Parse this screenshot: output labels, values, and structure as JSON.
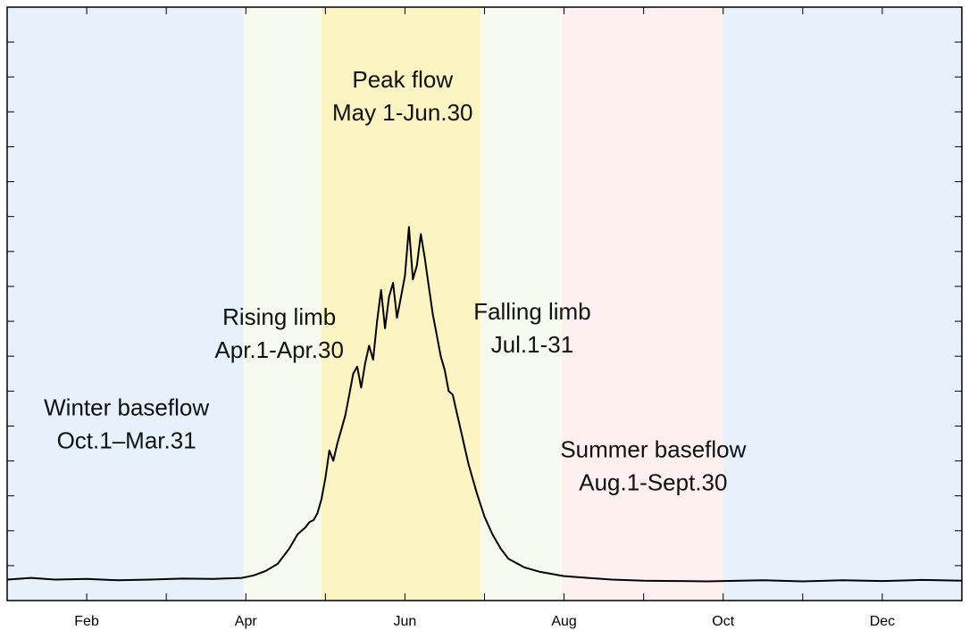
{
  "chart_data": {
    "type": "line",
    "title": "",
    "xlabel": "",
    "ylabel": "",
    "x_unit": "month of year",
    "xlim": [
      1.0,
      13.0
    ],
    "ylim": [
      0,
      17
    ],
    "grid": false,
    "x_ticks": [
      {
        "value": 1.0,
        "label": ""
      },
      {
        "value": 2.0,
        "label": "Feb"
      },
      {
        "value": 3.0,
        "label": ""
      },
      {
        "value": 4.0,
        "label": "Apr"
      },
      {
        "value": 5.0,
        "label": ""
      },
      {
        "value": 6.0,
        "label": "Jun"
      },
      {
        "value": 7.0,
        "label": ""
      },
      {
        "value": 8.0,
        "label": "Aug"
      },
      {
        "value": 9.0,
        "label": ""
      },
      {
        "value": 10.0,
        "label": "Oct"
      },
      {
        "value": 11.0,
        "label": ""
      },
      {
        "value": 12.0,
        "label": "Dec"
      },
      {
        "value": 13.0,
        "label": ""
      }
    ],
    "y_ticks": [
      0,
      1,
      2,
      3,
      4,
      5,
      6,
      7,
      8,
      9,
      10,
      11,
      12,
      13,
      14,
      15,
      16,
      17
    ],
    "bands": [
      {
        "from": 1.0,
        "to": 3.97,
        "color": "#e6f1fc",
        "name": "winter-baseflow-band-early"
      },
      {
        "from": 3.97,
        "to": 4.95,
        "color": "#f7fbef",
        "name": "rising-limb-band"
      },
      {
        "from": 4.95,
        "to": 6.95,
        "color": "#fdf4c4",
        "name": "peak-flow-band"
      },
      {
        "from": 6.95,
        "to": 7.97,
        "color": "#f7fbef",
        "name": "falling-limb-band"
      },
      {
        "from": 7.97,
        "to": 10.0,
        "color": "#fdf0ef",
        "name": "summer-baseflow-band"
      },
      {
        "from": 10.0,
        "to": 13.0,
        "color": "#e6f1fc",
        "name": "winter-baseflow-band-late"
      }
    ],
    "annotations": [
      {
        "name": "annotation-winter-baseflow",
        "lines": [
          "Winter baseflow",
          "Oct.1–Mar.31"
        ],
        "x": 2.5,
        "y": 5.3
      },
      {
        "name": "annotation-rising-limb",
        "lines": [
          "Rising limb",
          "Apr.1-Apr.30"
        ],
        "x": 4.42,
        "y": 7.9
      },
      {
        "name": "annotation-peak-flow",
        "lines": [
          "Peak flow",
          "May 1-Jun.30"
        ],
        "x": 5.97,
        "y": 14.7
      },
      {
        "name": "annotation-falling-limb",
        "lines": [
          "Falling limb",
          "Jul.1-31"
        ],
        "x": 7.6,
        "y": 8.05
      },
      {
        "name": "annotation-summer-baseflow",
        "lines": [
          "Summer baseflow",
          "Aug.1-Sept.30"
        ],
        "x": 9.12,
        "y": 4.1
      }
    ],
    "series": [
      {
        "color": "#000000",
        "x": [
          1.0,
          1.3,
          1.6,
          2.0,
          2.4,
          2.8,
          3.2,
          3.6,
          3.95,
          4.1,
          4.25,
          4.4,
          4.55,
          4.65,
          4.75,
          4.8,
          4.85,
          4.9,
          4.95,
          5.0,
          5.05,
          5.1,
          5.15,
          5.2,
          5.25,
          5.3,
          5.35,
          5.4,
          5.45,
          5.5,
          5.55,
          5.6,
          5.65,
          5.7,
          5.75,
          5.8,
          5.85,
          5.9,
          5.95,
          6.0,
          6.05,
          6.1,
          6.15,
          6.2,
          6.25,
          6.3,
          6.35,
          6.4,
          6.45,
          6.5,
          6.55,
          6.6,
          6.65,
          6.7,
          6.75,
          6.8,
          6.9,
          7.0,
          7.1,
          7.2,
          7.3,
          7.5,
          7.7,
          8.0,
          8.3,
          8.6,
          9.0,
          9.4,
          9.8,
          10.0,
          10.5,
          11.0,
          11.5,
          12.0,
          12.5,
          13.0
        ],
        "y": [
          0.6,
          0.65,
          0.6,
          0.62,
          0.58,
          0.6,
          0.63,
          0.62,
          0.65,
          0.72,
          0.85,
          1.05,
          1.5,
          1.9,
          2.1,
          2.25,
          2.3,
          2.5,
          2.9,
          3.5,
          4.3,
          4.0,
          4.5,
          4.9,
          5.3,
          5.9,
          6.5,
          6.7,
          6.1,
          6.8,
          7.3,
          6.9,
          8.0,
          8.9,
          7.8,
          8.7,
          9.1,
          8.1,
          8.7,
          9.3,
          10.7,
          9.2,
          9.6,
          10.5,
          9.8,
          9.0,
          8.2,
          7.6,
          7.0,
          6.6,
          6.0,
          5.9,
          5.4,
          4.9,
          4.4,
          3.9,
          3.1,
          2.4,
          1.9,
          1.5,
          1.2,
          0.95,
          0.82,
          0.7,
          0.65,
          0.6,
          0.57,
          0.56,
          0.55,
          0.56,
          0.58,
          0.55,
          0.58,
          0.56,
          0.59,
          0.57
        ]
      }
    ]
  }
}
